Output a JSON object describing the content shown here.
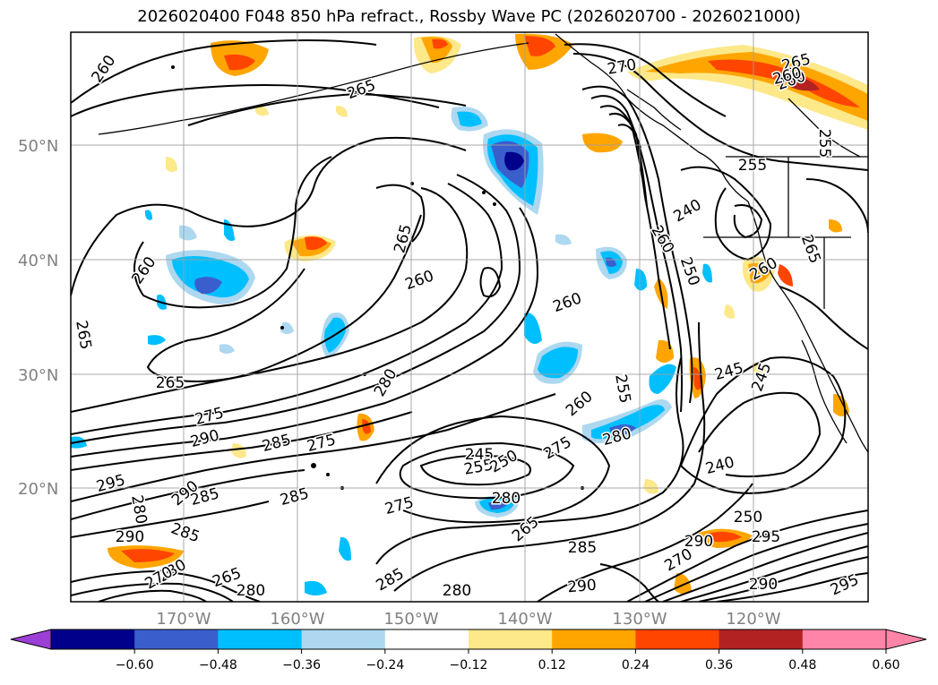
{
  "title": "2026020400 F048 850 hPa refract., Rossby Wave PC (2026020700 - 2026021000)",
  "map": {
    "lat_labels": [
      "50°N",
      "40°N",
      "30°N",
      "20°N"
    ],
    "lon_labels": [
      "170°W",
      "160°W",
      "150°W",
      "140°W",
      "130°W",
      "120°W"
    ],
    "contour_labels": [
      "260",
      "265",
      "265",
      "260",
      "260",
      "265",
      "260",
      "265",
      "260",
      "270",
      "265",
      "260",
      "255",
      "255",
      "240",
      "260",
      "250",
      "260",
      "265",
      "275",
      "290",
      "285",
      "275",
      "295",
      "280",
      "290",
      "290",
      "285",
      "280",
      "285",
      "290",
      "270",
      "265",
      "285",
      "280",
      "275",
      "280",
      "280",
      "245",
      "255",
      "250",
      "275",
      "280",
      "260",
      "255",
      "265",
      "245",
      "245",
      "240",
      "250",
      "295",
      "280",
      "285",
      "290",
      "295",
      "290",
      "270",
      "285"
    ]
  },
  "colorbar": {
    "ticks": [
      "−0.60",
      "−0.48",
      "−0.36",
      "−0.24",
      "−0.12",
      "0.12",
      "0.24",
      "0.36",
      "0.48",
      "0.60"
    ],
    "colors": {
      "under": "#9b3fd6",
      "bins": [
        "#00008b",
        "#3a5fcd",
        "#00bfff",
        "#add8f0",
        "#ffffff",
        "#fde88a",
        "#ffa500",
        "#ff4500",
        "#b22222",
        "#ff85a8"
      ]
    }
  }
}
